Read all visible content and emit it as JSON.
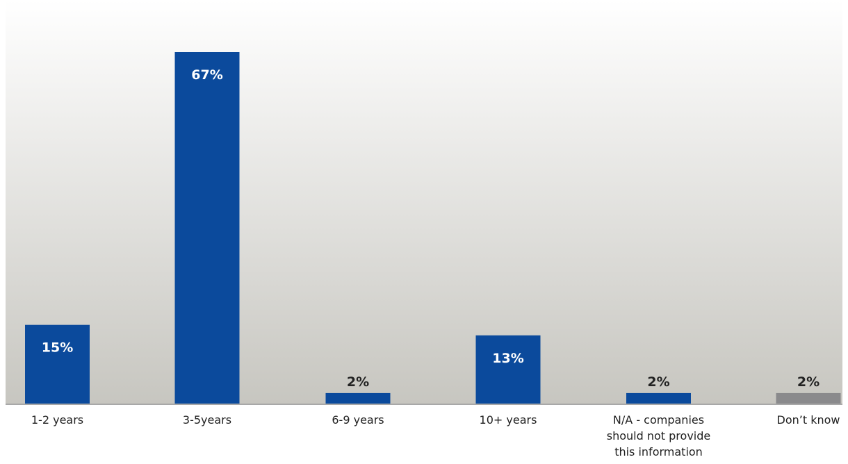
{
  "chart_data": {
    "type": "bar",
    "categories": [
      [
        "1-2 years"
      ],
      [
        "3-5years"
      ],
      [
        "6-9 years"
      ],
      [
        "10+ years"
      ],
      [
        "N/A - companies",
        "should not provide",
        "this information"
      ],
      [
        "Don’t know"
      ]
    ],
    "values": [
      15,
      67,
      2,
      13,
      2,
      2
    ],
    "value_labels": [
      "15%",
      "67%",
      "2%",
      "13%",
      "2%",
      "2%"
    ],
    "bar_colors": [
      "#0b4a9c",
      "#0b4a9c",
      "#0b4a9c",
      "#0b4a9c",
      "#0b4a9c",
      "#8a8a8c"
    ],
    "ylim": [
      0,
      67
    ],
    "grid": false,
    "legend": "none",
    "colors": {
      "background_top": "#ffffff",
      "background_bottom": "#c7c6c0",
      "axis": "#a8a8a8",
      "label_inside": "#ffffff",
      "label_outside": "#222222"
    }
  }
}
